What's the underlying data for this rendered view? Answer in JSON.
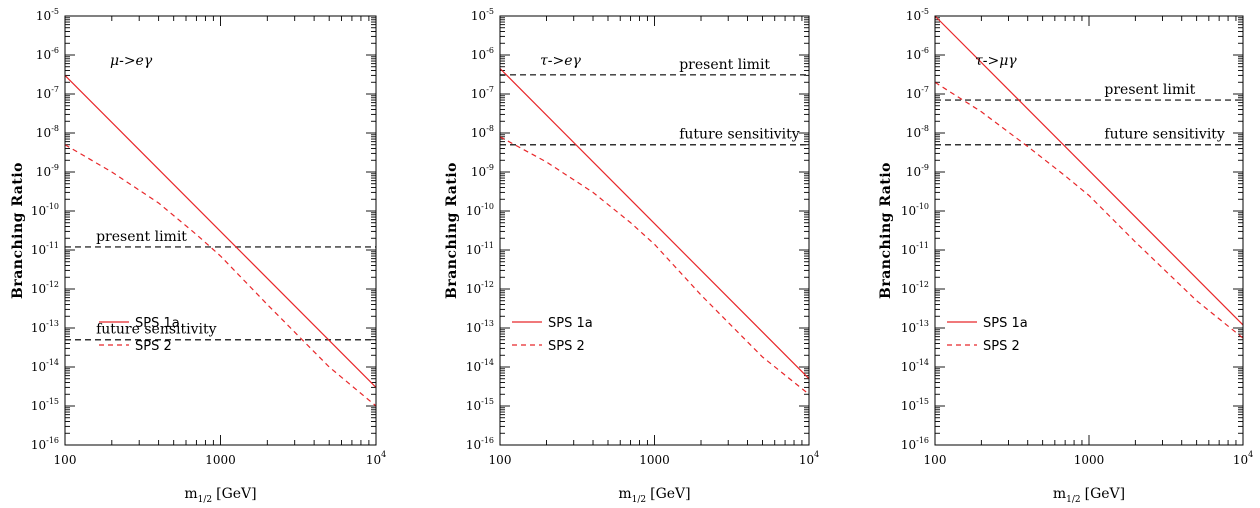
{
  "chart_data": [
    {
      "type": "line",
      "title": "μ->eγ",
      "xlabel_main": "m",
      "xlabel_sub": "1/2",
      "xlabel_unit": "[GeV]",
      "ylabel": "Branching Ratio",
      "xscale": "log",
      "yscale": "log",
      "xlim": [
        100,
        10000
      ],
      "ylim": [
        1e-16,
        1e-05
      ],
      "x_ticks": [
        {
          "value": 100,
          "label": "100"
        },
        {
          "value": 1000,
          "label": "1000"
        },
        {
          "value": 10000,
          "label": "10",
          "exp": "4"
        }
      ],
      "y_ticks": [
        {
          "value": 1e-05,
          "label": "10",
          "exp": "-5"
        },
        {
          "value": 1e-06,
          "label": "10",
          "exp": "-6"
        },
        {
          "value": 1e-07,
          "label": "10",
          "exp": "-7"
        },
        {
          "value": 1e-08,
          "label": "10",
          "exp": "-8"
        },
        {
          "value": 1e-09,
          "label": "10",
          "exp": "-9"
        },
        {
          "value": 1e-10,
          "label": "10",
          "exp": "-10"
        },
        {
          "value": 1e-11,
          "label": "10",
          "exp": "-11"
        },
        {
          "value": 1e-12,
          "label": "10",
          "exp": "-12"
        },
        {
          "value": 1e-13,
          "label": "10",
          "exp": "-13"
        },
        {
          "value": 1e-14,
          "label": "10",
          "exp": "-14"
        },
        {
          "value": 1e-15,
          "label": "10",
          "exp": "-15"
        },
        {
          "value": 1e-16,
          "label": "10",
          "exp": "-16"
        }
      ],
      "series": [
        {
          "name": "SPS 1a",
          "color": "#e8272a",
          "dash": "solid",
          "x": [
            100,
            10000
          ],
          "y": [
            3e-07,
            3e-15
          ]
        },
        {
          "name": "SPS 2",
          "color": "#e8272a",
          "dash": "dashed",
          "x": [
            100,
            200,
            400,
            700,
            1000,
            2000,
            5000,
            10000
          ],
          "y": [
            5e-09,
            1e-09,
            1.6e-10,
            2.5e-11,
            7e-12,
            4e-13,
            1e-14,
            1e-15
          ]
        }
      ],
      "reference_lines": [
        {
          "label": "present limit",
          "y": 1.2e-11,
          "color": "#333333"
        },
        {
          "label": "future sensitivity",
          "y": 5e-14,
          "color": "#333333"
        }
      ],
      "legend_position": "bottom-left"
    },
    {
      "type": "line",
      "title": "τ->eγ",
      "xlabel_main": "m",
      "xlabel_sub": "1/2",
      "xlabel_unit": "[GeV]",
      "ylabel": "Branching Ratio",
      "xscale": "log",
      "yscale": "log",
      "xlim": [
        100,
        10000
      ],
      "ylim": [
        1e-16,
        1e-05
      ],
      "x_ticks": [
        {
          "value": 100,
          "label": "100"
        },
        {
          "value": 1000,
          "label": "1000"
        },
        {
          "value": 10000,
          "label": "10",
          "exp": "4"
        }
      ],
      "y_ticks": [
        {
          "value": 1e-05,
          "label": "10",
          "exp": "-5"
        },
        {
          "value": 1e-06,
          "label": "10",
          "exp": "-6"
        },
        {
          "value": 1e-07,
          "label": "10",
          "exp": "-7"
        },
        {
          "value": 1e-08,
          "label": "10",
          "exp": "-8"
        },
        {
          "value": 1e-09,
          "label": "10",
          "exp": "-9"
        },
        {
          "value": 1e-10,
          "label": "10",
          "exp": "-10"
        },
        {
          "value": 1e-11,
          "label": "10",
          "exp": "-11"
        },
        {
          "value": 1e-12,
          "label": "10",
          "exp": "-12"
        },
        {
          "value": 1e-13,
          "label": "10",
          "exp": "-13"
        },
        {
          "value": 1e-14,
          "label": "10",
          "exp": "-14"
        },
        {
          "value": 1e-15,
          "label": "10",
          "exp": "-15"
        },
        {
          "value": 1e-16,
          "label": "10",
          "exp": "-16"
        }
      ],
      "series": [
        {
          "name": "SPS 1a",
          "color": "#e8272a",
          "dash": "solid",
          "x": [
            100,
            10000
          ],
          "y": [
            4.5e-07,
            5e-15
          ]
        },
        {
          "name": "SPS 2",
          "color": "#e8272a",
          "dash": "dashed",
          "x": [
            100,
            200,
            400,
            700,
            1000,
            2000,
            5000,
            10000
          ],
          "y": [
            8e-09,
            1.8e-09,
            3e-10,
            5e-11,
            1.4e-11,
            7e-13,
            1.8e-14,
            2e-15
          ]
        }
      ],
      "reference_lines": [
        {
          "label": "present limit",
          "y": 3.1e-07,
          "color": "#333333"
        },
        {
          "label": "future sensitivity",
          "y": 5e-09,
          "color": "#333333"
        }
      ],
      "legend_position": "bottom-left"
    },
    {
      "type": "line",
      "title": "τ->μγ",
      "xlabel_main": "m",
      "xlabel_sub": "1/2",
      "xlabel_unit": "[GeV]",
      "ylabel": "Branching Ratio",
      "xscale": "log",
      "yscale": "log",
      "xlim": [
        100,
        10000
      ],
      "ylim": [
        1e-16,
        1e-05
      ],
      "x_ticks": [
        {
          "value": 100,
          "label": "100"
        },
        {
          "value": 1000,
          "label": "1000"
        },
        {
          "value": 10000,
          "label": "10",
          "exp": "4"
        }
      ],
      "y_ticks": [
        {
          "value": 1e-05,
          "label": "10",
          "exp": "-5"
        },
        {
          "value": 1e-06,
          "label": "10",
          "exp": "-6"
        },
        {
          "value": 1e-07,
          "label": "10",
          "exp": "-7"
        },
        {
          "value": 1e-08,
          "label": "10",
          "exp": "-8"
        },
        {
          "value": 1e-09,
          "label": "10",
          "exp": "-9"
        },
        {
          "value": 1e-10,
          "label": "10",
          "exp": "-10"
        },
        {
          "value": 1e-11,
          "label": "10",
          "exp": "-11"
        },
        {
          "value": 1e-12,
          "label": "10",
          "exp": "-12"
        },
        {
          "value": 1e-13,
          "label": "10",
          "exp": "-13"
        },
        {
          "value": 1e-14,
          "label": "10",
          "exp": "-14"
        },
        {
          "value": 1e-15,
          "label": "10",
          "exp": "-15"
        },
        {
          "value": 1e-16,
          "label": "10",
          "exp": "-16"
        }
      ],
      "series": [
        {
          "name": "SPS 1a",
          "color": "#e8272a",
          "dash": "solid",
          "x": [
            100,
            10000
          ],
          "y": [
            1e-05,
            1.2e-13
          ]
        },
        {
          "name": "SPS 2",
          "color": "#e8272a",
          "dash": "dashed",
          "x": [
            100,
            200,
            400,
            700,
            1000,
            2000,
            5000,
            10000
          ],
          "y": [
            2e-07,
            3.5e-08,
            4.5e-09,
            8e-10,
            2.5e-10,
            1.6e-11,
            5e-13,
            5.5e-14
          ]
        }
      ],
      "reference_lines": [
        {
          "label": "present limit",
          "y": 7e-08,
          "color": "#333333"
        },
        {
          "label": "future sensitivity",
          "y": 5e-09,
          "color": "#333333"
        }
      ],
      "legend_position": "bottom-left"
    }
  ]
}
